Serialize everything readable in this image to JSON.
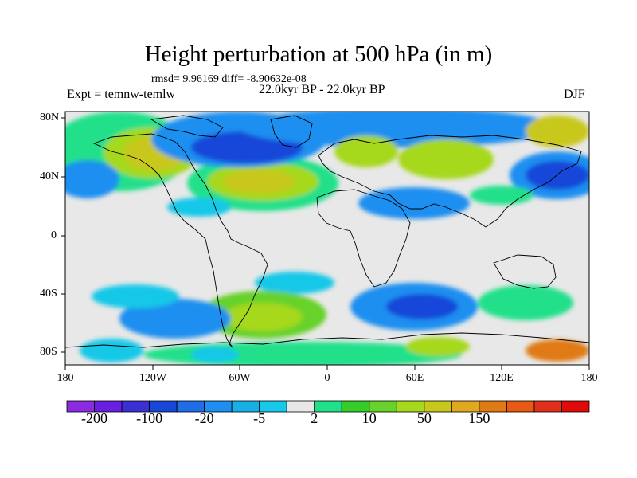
{
  "title": "Height perturbation at 500 hPa (in m)",
  "stats": "rmsd= 9.96169 diff= -8.90632e-08",
  "expt": "Expt = temnw-temlw",
  "period": "22.0kyr BP - 22.0kyr BP",
  "season": "DJF",
  "lat_labels": [
    "80N",
    "40N",
    "0",
    "40S",
    "80S"
  ],
  "lon_labels": [
    "180",
    "120W",
    "60W",
    "0",
    "60E",
    "120E",
    "180"
  ],
  "colorbar": {
    "colors": [
      "#8a2be2",
      "#6a1ee0",
      "#3b2fd6",
      "#1747d8",
      "#1f6ee8",
      "#1e8ff0",
      "#17b0e6",
      "#17c8e8",
      "#e8e8e8",
      "#20e08a",
      "#36cc2a",
      "#66d22a",
      "#a6d81c",
      "#c8c81c",
      "#e0a81c",
      "#e07a14",
      "#e85a14",
      "#e0301c",
      "#e00a0a"
    ],
    "labels": [
      "-200",
      "-100",
      "-20",
      "-5",
      "2",
      "10",
      "50",
      "150"
    ]
  },
  "colors": {
    "background": "#e8e8e8",
    "deep_negative": "#1e3fd0",
    "negative": "#1e8ff0",
    "weak_negative": "#17c8e8",
    "weak_positive": "#20e08a",
    "positive": "#66d22a",
    "strong_positive": "#c8c81c"
  }
}
